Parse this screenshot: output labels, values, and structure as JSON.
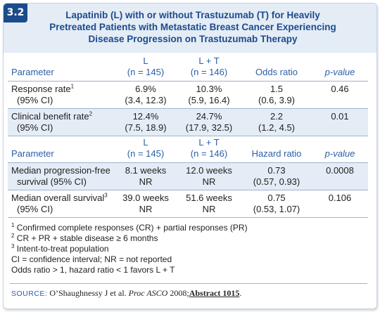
{
  "figure": {
    "number": "3.2",
    "title_lines": [
      "Lapatinib (L) with or without Trastuzumab (T) for Heavily",
      "Pretreated Patients with Metastatic Breast Cancer Experiencing",
      "Disease Progression on Trastuzumab Therapy"
    ]
  },
  "table1": {
    "headers": [
      {
        "line1": "Parameter",
        "line2": ""
      },
      {
        "line1": "L",
        "line2": "(n = 145)"
      },
      {
        "line1": "L + T",
        "line2": "(n = 146)"
      },
      {
        "line1": "Odds ratio",
        "line2": ""
      },
      {
        "line1": "p-value",
        "line2": ""
      }
    ],
    "rows": [
      {
        "label1": "Response rate",
        "sup": "1",
        "label2": "(95% CI)",
        "cells": [
          [
            "6.9%",
            "(3.4, 12.3)"
          ],
          [
            "10.3%",
            "(5.9, 16.4)"
          ],
          [
            "1.5",
            "(0.6, 3.9)"
          ],
          [
            "0.46",
            ""
          ]
        ]
      },
      {
        "label1": "Clinical benefit rate",
        "sup": "2",
        "label2": "(95% CI)",
        "cells": [
          [
            "12.4%",
            "(7.5, 18.9)"
          ],
          [
            "24.7%",
            "(17.9, 32.5)"
          ],
          [
            "2.2",
            "(1.2, 4.5)"
          ],
          [
            "0.01",
            ""
          ]
        ]
      }
    ]
  },
  "table2": {
    "headers": [
      {
        "line1": "Parameter",
        "line2": ""
      },
      {
        "line1": "L",
        "line2": "(n = 145)"
      },
      {
        "line1": "L + T",
        "line2": "(n = 146)"
      },
      {
        "line1": "Hazard ratio",
        "line2": ""
      },
      {
        "line1": "p-value",
        "line2": ""
      }
    ],
    "rows": [
      {
        "label1": "Median progression-free",
        "sup": "",
        "label2": "survival (95% CI)",
        "cells": [
          [
            "8.1 weeks",
            "NR"
          ],
          [
            "12.0 weeks",
            "NR"
          ],
          [
            "0.73",
            "(0.57, 0.93)"
          ],
          [
            "0.0008",
            ""
          ]
        ]
      },
      {
        "label1": "Median overall survival",
        "sup": "3",
        "label2": "(95% CI)",
        "cells": [
          [
            "39.0 weeks",
            "NR"
          ],
          [
            "51.6 weeks",
            "NR"
          ],
          [
            "0.75",
            "(0.53, 1.07)"
          ],
          [
            "0.106",
            ""
          ]
        ]
      }
    ]
  },
  "footnotes": [
    {
      "sup": "1",
      "text": "Confirmed complete responses (CR) + partial responses (PR)"
    },
    {
      "sup": "2",
      "text": "CR + PR + stable disease ≥ 6 months"
    },
    {
      "sup": "3",
      "text": "Intent-to-treat population"
    },
    {
      "sup": "",
      "text": "CI = confidence interval; NR = not reported"
    },
    {
      "sup": "",
      "text": "Odds ratio > 1, hazard ratio < 1 favors L + T"
    }
  ],
  "source": {
    "label": "SOURCE:",
    "authors": "O’Shaughnessy J et al.",
    "journal": "Proc ASCO",
    "year": "2008;",
    "abstract": "Abstract 1015",
    "end": "."
  }
}
